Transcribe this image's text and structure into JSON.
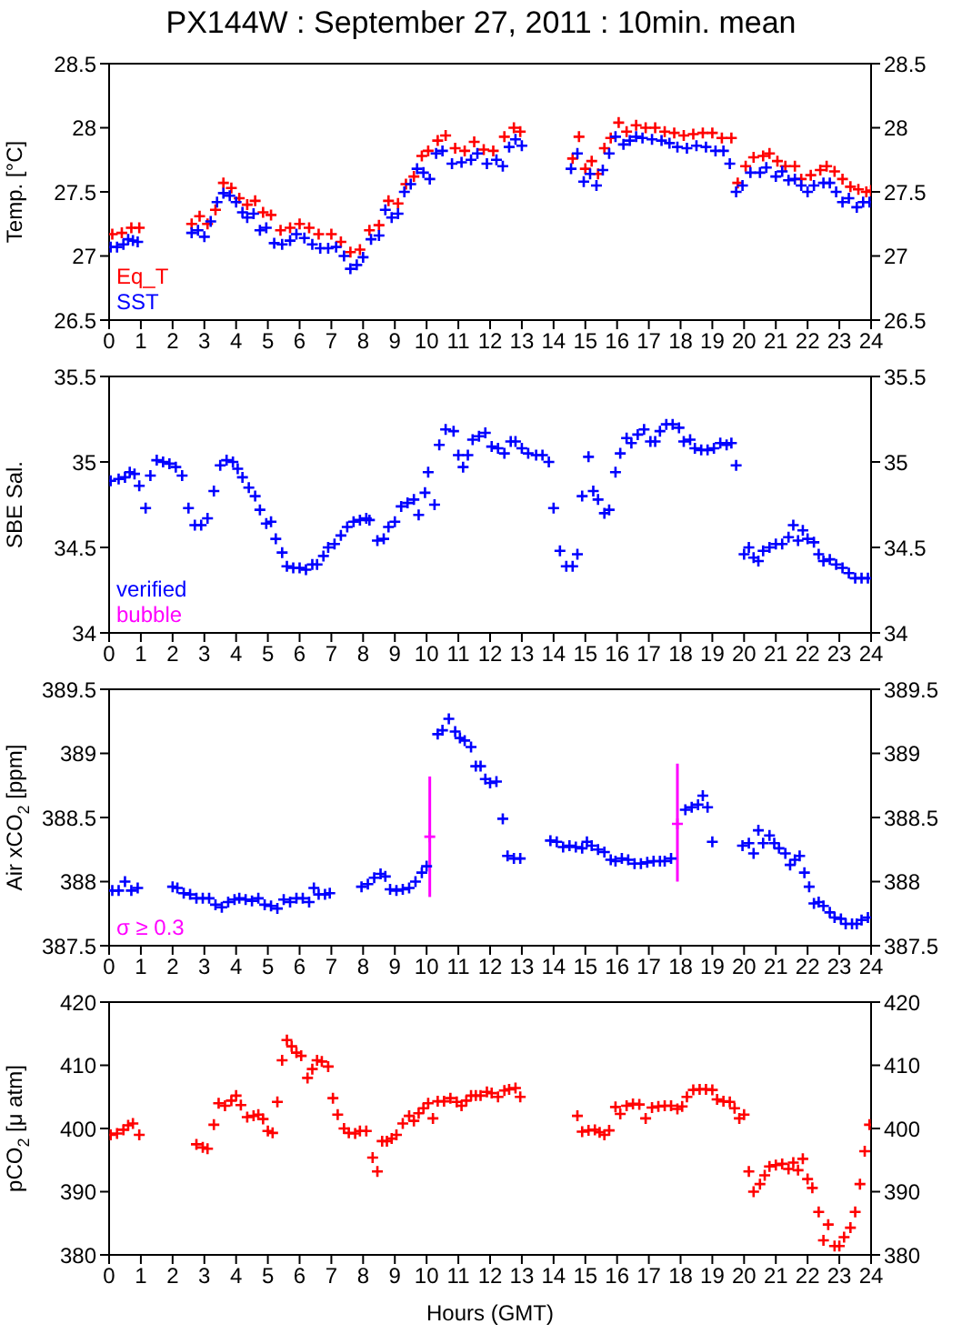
{
  "chart_data": [
    {
      "type": "scatter",
      "title": "PX144W : September 27, 2011 : 10min. mean",
      "ylabel": "Temp. [°C]",
      "xlim": [
        0,
        24
      ],
      "xticks": [
        0,
        1,
        2,
        3,
        4,
        5,
        6,
        7,
        8,
        9,
        10,
        11,
        12,
        13,
        14,
        15,
        16,
        17,
        18,
        19,
        20,
        21,
        22,
        23,
        24
      ],
      "ylim": [
        26.5,
        28.5
      ],
      "yticks": [
        26.5,
        27,
        27.5,
        28,
        28.5
      ],
      "y2lim": [
        26.5,
        28.5
      ],
      "y2ticks": [
        26.5,
        27,
        27.5,
        28,
        28.5
      ],
      "marker": "cross",
      "legend": "bottom left",
      "series": [
        {
          "name": "Eq_T",
          "color": "#ff0000",
          "x": [
            0.1,
            0.4,
            0.7,
            0.95,
            2.6,
            2.85,
            3.1,
            3.35,
            3.6,
            3.85,
            4.1,
            4.35,
            4.6,
            4.85,
            5.1,
            5.4,
            5.7,
            6.0,
            6.3,
            6.6,
            7.0,
            7.3,
            7.6,
            7.9,
            8.2,
            8.5,
            8.8,
            9.1,
            9.35,
            9.6,
            9.85,
            10.05,
            10.35,
            10.6,
            10.9,
            11.2,
            11.5,
            11.8,
            12.1,
            12.45,
            12.75,
            12.95,
            14.6,
            14.8,
            15.0,
            15.2,
            15.4,
            15.6,
            15.8,
            16.05,
            16.3,
            16.6,
            16.9,
            17.2,
            17.5,
            17.8,
            18.1,
            18.4,
            18.7,
            19.0,
            19.3,
            19.6,
            19.8,
            20.05,
            20.3,
            20.6,
            20.8,
            21.05,
            21.3,
            21.6,
            21.8,
            22.1,
            22.4,
            22.6,
            22.85,
            23.1,
            23.35,
            23.6,
            23.85,
            24.0
          ],
          "values": [
            27.17,
            27.18,
            27.22,
            27.22,
            27.25,
            27.31,
            27.25,
            27.36,
            27.57,
            27.53,
            27.45,
            27.4,
            27.43,
            27.34,
            27.32,
            27.2,
            27.22,
            27.25,
            27.22,
            27.17,
            27.17,
            27.11,
            27.03,
            27.05,
            27.2,
            27.24,
            27.43,
            27.41,
            27.56,
            27.62,
            27.78,
            27.82,
            27.9,
            27.94,
            27.84,
            27.82,
            27.89,
            27.83,
            27.82,
            27.93,
            28.0,
            27.97,
            27.76,
            27.93,
            27.68,
            27.74,
            27.64,
            27.84,
            27.92,
            28.04,
            27.97,
            28.02,
            28.0,
            28.0,
            27.97,
            27.96,
            27.94,
            27.95,
            27.96,
            27.96,
            27.92,
            27.92,
            27.57,
            27.7,
            27.77,
            27.78,
            27.8,
            27.74,
            27.7,
            27.7,
            27.6,
            27.63,
            27.67,
            27.7,
            27.66,
            27.6,
            27.54,
            27.52,
            27.5,
            27.51
          ]
        },
        {
          "name": "SST",
          "color": "#0000ff",
          "x": [
            0.05,
            0.25,
            0.45,
            0.6,
            0.75,
            0.9,
            2.6,
            2.8,
            3.0,
            3.2,
            3.4,
            3.6,
            3.8,
            4.0,
            4.2,
            4.35,
            4.55,
            4.75,
            4.95,
            5.2,
            5.45,
            5.7,
            5.9,
            6.15,
            6.4,
            6.65,
            6.9,
            7.15,
            7.4,
            7.6,
            7.8,
            8.0,
            8.25,
            8.5,
            8.7,
            8.9,
            9.1,
            9.3,
            9.5,
            9.7,
            9.9,
            10.1,
            10.3,
            10.5,
            10.8,
            11.1,
            11.4,
            11.6,
            11.9,
            12.2,
            12.4,
            12.6,
            12.8,
            13.0,
            14.55,
            14.75,
            14.95,
            15.15,
            15.35,
            15.55,
            15.75,
            15.95,
            16.2,
            16.4,
            16.6,
            16.8,
            17.1,
            17.4,
            17.65,
            17.9,
            18.2,
            18.5,
            18.8,
            19.1,
            19.35,
            19.55,
            19.75,
            19.95,
            20.2,
            20.5,
            20.7,
            21.0,
            21.2,
            21.4,
            21.6,
            21.8,
            22.0,
            22.2,
            22.5,
            22.7,
            22.9,
            23.1,
            23.3,
            23.55,
            23.75,
            23.95
          ],
          "values": [
            27.07,
            27.07,
            27.09,
            27.13,
            27.12,
            27.11,
            27.18,
            27.2,
            27.15,
            27.27,
            27.42,
            27.49,
            27.47,
            27.42,
            27.34,
            27.3,
            27.33,
            27.2,
            27.22,
            27.1,
            27.09,
            27.12,
            27.17,
            27.14,
            27.09,
            27.06,
            27.06,
            27.07,
            27.0,
            26.9,
            26.93,
            26.99,
            27.13,
            27.16,
            27.36,
            27.3,
            27.33,
            27.5,
            27.56,
            27.68,
            27.65,
            27.6,
            27.8,
            27.82,
            27.72,
            27.73,
            27.75,
            27.8,
            27.72,
            27.75,
            27.7,
            27.85,
            27.91,
            27.86,
            27.68,
            27.8,
            27.58,
            27.64,
            27.55,
            27.67,
            27.8,
            27.93,
            27.87,
            27.9,
            27.93,
            27.92,
            27.91,
            27.9,
            27.88,
            27.85,
            27.84,
            27.86,
            27.85,
            27.82,
            27.82,
            27.72,
            27.5,
            27.55,
            27.65,
            27.65,
            27.69,
            27.62,
            27.66,
            27.59,
            27.6,
            27.55,
            27.5,
            27.55,
            27.57,
            27.57,
            27.5,
            27.42,
            27.45,
            27.38,
            27.42,
            27.42
          ]
        }
      ]
    },
    {
      "type": "scatter",
      "ylabel": "SBE Sal.",
      "xlim": [
        0,
        24
      ],
      "xticks": [
        0,
        1,
        2,
        3,
        4,
        5,
        6,
        7,
        8,
        9,
        10,
        11,
        12,
        13,
        14,
        15,
        16,
        17,
        18,
        19,
        20,
        21,
        22,
        23,
        24
      ],
      "ylim": [
        34,
        35.5
      ],
      "yticks": [
        34,
        34.5,
        35,
        35.5
      ],
      "y2lim": [
        34,
        35.5
      ],
      "y2ticks": [
        34,
        34.5,
        35,
        35.5
      ],
      "marker": "cross",
      "legend": "bottom left",
      "series": [
        {
          "name": "verified",
          "color": "#0000ff",
          "x": [
            0.05,
            0.3,
            0.5,
            0.65,
            0.8,
            0.95,
            1.15,
            1.3,
            1.5,
            1.7,
            1.9,
            2.1,
            2.3,
            2.5,
            2.7,
            2.9,
            3.1,
            3.3,
            3.5,
            3.7,
            3.9,
            4.05,
            4.2,
            4.4,
            4.6,
            4.75,
            4.95,
            5.1,
            5.25,
            5.45,
            5.6,
            5.8,
            6.0,
            6.2,
            6.4,
            6.55,
            6.75,
            6.9,
            7.1,
            7.3,
            7.5,
            7.7,
            7.9,
            8.1,
            8.2,
            8.45,
            8.65,
            8.8,
            9.0,
            9.2,
            9.4,
            9.6,
            9.75,
            9.95,
            10.05,
            10.25,
            10.4,
            10.6,
            10.85,
            11.0,
            11.15,
            11.3,
            11.45,
            11.65,
            11.85,
            12.05,
            12.25,
            12.45,
            12.65,
            12.8,
            13.0,
            13.2,
            13.45,
            13.65,
            13.85,
            14.0,
            14.2,
            14.4,
            14.6,
            14.75,
            14.9,
            15.1,
            15.25,
            15.4,
            15.6,
            15.75,
            15.95,
            16.1,
            16.3,
            16.45,
            16.65,
            16.85,
            17.05,
            17.2,
            17.35,
            17.55,
            17.75,
            17.95,
            18.1,
            18.3,
            18.45,
            18.65,
            18.85,
            19.05,
            19.25,
            19.45,
            19.6,
            19.75,
            20.0,
            20.15,
            20.3,
            20.45,
            20.6,
            20.8,
            21.0,
            21.2,
            21.4,
            21.55,
            21.7,
            21.85,
            22.0,
            22.2,
            22.35,
            22.5,
            22.7,
            22.9,
            23.1,
            23.3,
            23.5,
            23.7,
            23.9
          ],
          "values": [
            34.89,
            34.9,
            34.91,
            34.94,
            34.93,
            34.86,
            34.73,
            34.92,
            35.01,
            35.0,
            34.99,
            34.97,
            34.92,
            34.73,
            34.63,
            34.63,
            34.67,
            34.83,
            34.98,
            35.01,
            35.0,
            34.96,
            34.91,
            34.85,
            34.8,
            34.72,
            34.64,
            34.65,
            34.55,
            34.47,
            34.39,
            34.38,
            34.38,
            34.37,
            34.4,
            34.4,
            34.45,
            34.5,
            34.52,
            34.57,
            34.62,
            34.65,
            34.66,
            34.67,
            34.66,
            34.54,
            34.55,
            34.62,
            34.65,
            34.74,
            34.76,
            34.78,
            34.69,
            34.82,
            34.94,
            34.75,
            35.1,
            35.19,
            35.18,
            35.04,
            34.97,
            35.04,
            35.13,
            35.15,
            35.17,
            35.09,
            35.08,
            35.05,
            35.12,
            35.12,
            35.08,
            35.05,
            35.04,
            35.04,
            35.0,
            34.73,
            34.48,
            34.39,
            34.39,
            34.46,
            34.8,
            35.03,
            34.83,
            34.78,
            34.7,
            34.72,
            34.94,
            35.05,
            35.14,
            35.11,
            35.16,
            35.19,
            35.12,
            35.12,
            35.18,
            35.22,
            35.22,
            35.2,
            35.12,
            35.13,
            35.08,
            35.07,
            35.07,
            35.08,
            35.11,
            35.1,
            35.11,
            34.98,
            34.46,
            34.5,
            34.44,
            34.42,
            34.48,
            34.5,
            34.52,
            34.52,
            34.56,
            34.63,
            34.54,
            34.6,
            34.55,
            34.53,
            34.46,
            34.42,
            34.43,
            34.4,
            34.38,
            34.35,
            34.32,
            34.32,
            34.32
          ]
        },
        {
          "name": "bubble",
          "color": "#ff00ff"
        }
      ]
    },
    {
      "type": "scatter",
      "ylabel": "Air xCO$_{2}$ [ppm]",
      "xlim": [
        0,
        24
      ],
      "xticks": [
        0,
        1,
        2,
        3,
        4,
        5,
        6,
        7,
        8,
        9,
        10,
        11,
        12,
        13,
        14,
        15,
        16,
        17,
        18,
        19,
        20,
        21,
        22,
        23,
        24
      ],
      "ylim": [
        387.5,
        389.5
      ],
      "yticks": [
        387.5,
        388,
        388.5,
        389,
        389.5
      ],
      "y2lim": [
        387.5,
        389.5
      ],
      "y2ticks": [
        387.5,
        388,
        388.5,
        389,
        389.5
      ],
      "marker": "cross",
      "legend": "bottom left",
      "series": [
        {
          "color": "#0000ff",
          "x": [
            0.1,
            0.3,
            0.5,
            0.7,
            0.9,
            2.0,
            2.15,
            2.35,
            2.55,
            2.75,
            2.95,
            3.15,
            3.35,
            3.55,
            3.75,
            3.95,
            4.1,
            4.3,
            4.5,
            4.7,
            4.9,
            5.1,
            5.3,
            5.5,
            5.7,
            5.9,
            6.1,
            6.3,
            6.45,
            6.6,
            6.8,
            6.95,
            7.95,
            8.15,
            8.35,
            8.55,
            8.7,
            8.85,
            9.05,
            9.25,
            9.45,
            9.65,
            9.85,
            10.0,
            10.35,
            10.5,
            10.7,
            10.9,
            11.05,
            11.2,
            11.4,
            11.55,
            11.7,
            11.85,
            12.0,
            12.2,
            12.4,
            12.55,
            12.75,
            12.95,
            13.9,
            14.1,
            14.3,
            14.5,
            14.7,
            14.9,
            15.05,
            15.2,
            15.4,
            15.6,
            15.8,
            15.95,
            16.15,
            16.35,
            16.55,
            16.75,
            16.95,
            17.15,
            17.35,
            17.5,
            17.7,
            18.15,
            18.35,
            18.55,
            18.7,
            18.85,
            19.0,
            19.95,
            20.15,
            20.3,
            20.45,
            20.6,
            20.8,
            20.95,
            21.1,
            21.3,
            21.45,
            21.6,
            21.75,
            21.9,
            22.05,
            22.2,
            22.35,
            22.5,
            22.7,
            22.85,
            23.05,
            23.2,
            23.4,
            23.55,
            23.7,
            23.9
          ],
          "values": [
            387.93,
            387.93,
            388.0,
            387.93,
            387.95,
            387.96,
            387.95,
            387.91,
            387.9,
            387.87,
            387.87,
            387.87,
            387.82,
            387.8,
            387.84,
            387.86,
            387.87,
            387.86,
            387.85,
            387.87,
            387.82,
            387.81,
            387.79,
            387.86,
            387.84,
            387.87,
            387.87,
            387.84,
            387.95,
            387.9,
            387.9,
            387.91,
            387.96,
            387.98,
            388.03,
            388.06,
            388.04,
            387.94,
            387.93,
            387.94,
            387.95,
            388.0,
            388.07,
            388.12,
            389.15,
            389.18,
            389.27,
            389.17,
            389.12,
            389.1,
            389.05,
            388.9,
            388.9,
            388.8,
            388.77,
            388.78,
            388.49,
            388.2,
            388.18,
            388.18,
            388.32,
            388.31,
            388.27,
            388.28,
            388.27,
            388.26,
            388.31,
            388.28,
            388.25,
            388.23,
            388.17,
            388.16,
            388.18,
            388.17,
            388.14,
            388.14,
            388.15,
            388.16,
            388.16,
            388.16,
            388.18,
            388.56,
            388.58,
            388.6,
            388.67,
            388.58,
            388.31,
            388.28,
            388.3,
            388.22,
            388.4,
            388.3,
            388.36,
            388.3,
            388.26,
            388.22,
            388.13,
            388.17,
            388.2,
            388.07,
            387.96,
            387.83,
            387.84,
            387.81,
            387.76,
            387.72,
            387.71,
            387.67,
            387.67,
            387.67,
            387.7,
            387.72
          ]
        },
        {
          "name": "σ ≥ 0.3",
          "color": "#ff00ff",
          "x": [
            10.1,
            17.9
          ],
          "values": [
            388.35,
            388.45
          ],
          "errors": [
            [
              387.88,
              388.82
            ],
            [
              388.0,
              388.92
            ]
          ]
        }
      ]
    },
    {
      "type": "scatter",
      "ylabel": "pCO$_{2}$ [μ atm]",
      "xlabel": "Hours (GMT)",
      "xlim": [
        0,
        24
      ],
      "xticks": [
        0,
        1,
        2,
        3,
        4,
        5,
        6,
        7,
        8,
        9,
        10,
        11,
        12,
        13,
        14,
        15,
        16,
        17,
        18,
        19,
        20,
        21,
        22,
        23,
        24
      ],
      "ylim": [
        380,
        420
      ],
      "yticks": [
        380,
        390,
        400,
        410,
        420
      ],
      "y2lim": [
        380,
        420
      ],
      "y2ticks": [
        380,
        390,
        400,
        410,
        420
      ],
      "marker": "cross",
      "series": [
        {
          "color": "#ff0000",
          "x": [
            0.05,
            0.25,
            0.45,
            0.6,
            0.75,
            0.95,
            2.75,
            2.95,
            3.1,
            3.3,
            3.45,
            3.65,
            3.85,
            4.0,
            4.15,
            4.35,
            4.55,
            4.7,
            4.85,
            5.0,
            5.15,
            5.3,
            5.45,
            5.6,
            5.75,
            5.9,
            6.05,
            6.25,
            6.4,
            6.55,
            6.7,
            6.9,
            7.05,
            7.2,
            7.4,
            7.55,
            7.75,
            7.9,
            8.1,
            8.3,
            8.45,
            8.6,
            8.75,
            8.9,
            9.05,
            9.25,
            9.45,
            9.6,
            9.75,
            9.9,
            10.05,
            10.2,
            10.35,
            10.55,
            10.75,
            10.95,
            11.1,
            11.25,
            11.4,
            11.55,
            11.7,
            11.9,
            12.05,
            12.25,
            12.45,
            12.6,
            12.8,
            12.95,
            14.75,
            14.9,
            15.1,
            15.3,
            15.45,
            15.6,
            15.75,
            15.95,
            16.1,
            16.3,
            16.5,
            16.7,
            16.9,
            17.1,
            17.3,
            17.5,
            17.7,
            17.9,
            18.05,
            18.2,
            18.4,
            18.6,
            18.8,
            19.0,
            19.15,
            19.35,
            19.55,
            19.7,
            19.85,
            20.0,
            20.15,
            20.3,
            20.5,
            20.65,
            20.8,
            21.0,
            21.2,
            21.4,
            21.55,
            21.7,
            21.85,
            22.0,
            22.15,
            22.35,
            22.5,
            22.65,
            22.85,
            23.0,
            23.15,
            23.35,
            23.5,
            23.65,
            23.8,
            23.95
          ],
          "values": [
            399,
            399.2,
            399.8,
            400.5,
            400.8,
            399.0,
            397.5,
            397,
            396.8,
            400.6,
            404,
            403.6,
            404.4,
            405.2,
            403.7,
            401.8,
            402,
            402.2,
            401.5,
            399.6,
            399.3,
            404.2,
            410.8,
            414.0,
            413,
            412,
            411.5,
            408,
            409.4,
            410.8,
            410.6,
            409.8,
            404.8,
            402.2,
            400,
            399.3,
            399.2,
            399.6,
            399.6,
            395.4,
            393.2,
            398,
            398,
            398.4,
            399,
            400.8,
            402,
            401.2,
            402.4,
            403.2,
            404,
            401.6,
            404.3,
            404.3,
            404.8,
            404.2,
            403.6,
            404.4,
            405.2,
            405.2,
            405.2,
            405.8,
            405.6,
            405,
            406,
            406.2,
            406.4,
            405,
            402,
            399.5,
            399.7,
            399.8,
            399.4,
            399.0,
            399.7,
            403.4,
            402.3,
            403.6,
            403.9,
            403.8,
            401.6,
            403.3,
            403.5,
            403.6,
            403.6,
            403.1,
            403.5,
            405.0,
            406.1,
            406.2,
            406.2,
            406.1,
            404.6,
            404.3,
            404.2,
            403.2,
            401.6,
            402.2,
            393.2,
            390,
            391.2,
            392.6,
            394,
            394.2,
            394.4,
            393.6,
            394.6,
            393.4,
            395.2,
            392,
            390.6,
            386.8,
            382.3,
            384.8,
            381.4,
            381.4,
            382.8,
            384.3,
            386.8,
            391.2,
            396.4,
            400.6
          ]
        }
      ]
    }
  ]
}
